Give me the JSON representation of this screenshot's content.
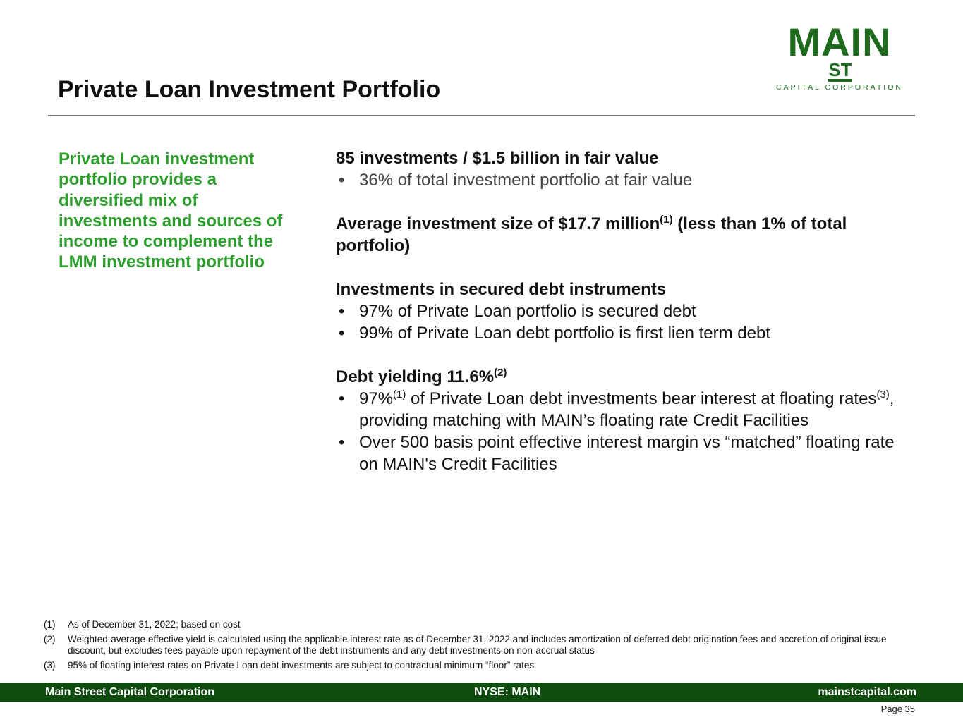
{
  "logo": {
    "main": "MAIN",
    "st": "ST",
    "sub": "CAPITAL CORPORATION"
  },
  "title": "Private Loan Investment Portfolio",
  "left_text": "Private Loan investment portfolio provides a diversified mix of investments and sources of income to complement the LMM investment portfolio",
  "sections": {
    "s1": {
      "heading": "85 investments / $1.5 billion in fair value",
      "b1": "36% of total investment portfolio at fair value"
    },
    "s2": {
      "heading_a": "Average investment size of $17.7 million",
      "sup": "(1)",
      "heading_b": " (less than 1% of total portfolio)"
    },
    "s3": {
      "heading": "Investments in secured debt instruments",
      "b1": "97% of Private Loan portfolio is secured debt",
      "b2": "99% of Private Loan debt portfolio is first lien term debt"
    },
    "s4": {
      "heading": "Debt yielding 11.6%",
      "sup": "(2)",
      "b1_a": "97%",
      "b1_sup1": "(1)",
      "b1_b": " of Private Loan debt investments bear interest at floating rates",
      "b1_sup2": "(3)",
      "b1_c": ", providing matching with MAIN’s floating rate Credit Facilities",
      "b2": "Over 500 basis point effective interest margin vs “matched” floating rate on MAIN's Credit Facilities"
    }
  },
  "footnotes": [
    {
      "n": "(1)",
      "text": "As of December 31, 2022; based on cost"
    },
    {
      "n": "(2)",
      "text": "Weighted-average effective yield is calculated using the applicable interest rate as of December 31, 2022 and includes amortization of deferred debt origination fees and accretion of original issue discount, but excludes fees payable upon repayment of the debt instruments and any debt investments on non-accrual status"
    },
    {
      "n": "(3)",
      "text": "95% of floating interest rates on Private Loan debt investments are subject to contractual minimum “floor” rates"
    }
  ],
  "footer": {
    "left": "Main Street Capital Corporation",
    "center": "NYSE: MAIN",
    "right": "mainstcapital.com",
    "page": "Page  35"
  },
  "colors": {
    "brand_green": "#1e6b1e",
    "accent_green": "#2e9e2e",
    "footer_bg": "#0f4d0f"
  }
}
